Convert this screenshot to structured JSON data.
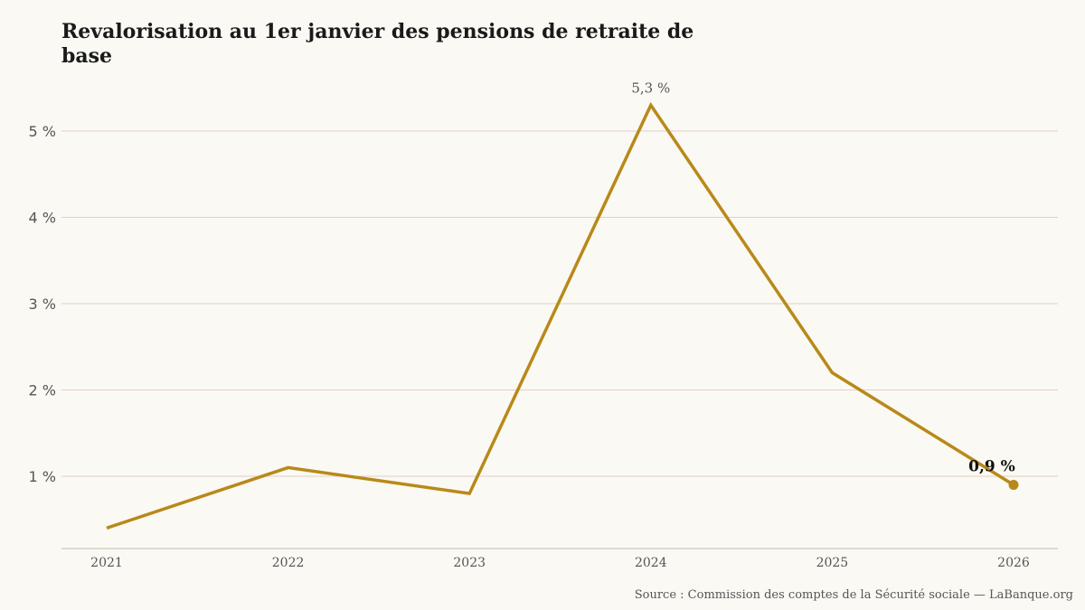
{
  "chart_data": {
    "type": "line",
    "title": "Revalorisation au 1er janvier des pensions de retraite de base",
    "x": [
      "2021",
      "2022",
      "2023",
      "2024",
      "2025",
      "2026"
    ],
    "series": [
      {
        "values": [
          0.4,
          1.1,
          0.8,
          5.3,
          2.2,
          0.9
        ]
      }
    ],
    "yticks": [
      1,
      2,
      3,
      4,
      5
    ],
    "ytick_labels": [
      "1 %",
      "2 %",
      "3 %",
      "4 %",
      "5 %"
    ],
    "ylim": [
      0,
      5.6
    ],
    "grid": true,
    "annotations": [
      {
        "x": "2024",
        "y": 5.3,
        "text": "5,3 %"
      },
      {
        "x": "2026",
        "y": 0.9,
        "text": "0,9 %"
      }
    ],
    "line_color": "#b8891a",
    "grid_color": "#e2cfc6",
    "axis_color": "#cfc8bc"
  },
  "source": "Source : Commission des comptes de la Sécurité sociale — LaBanque.org"
}
